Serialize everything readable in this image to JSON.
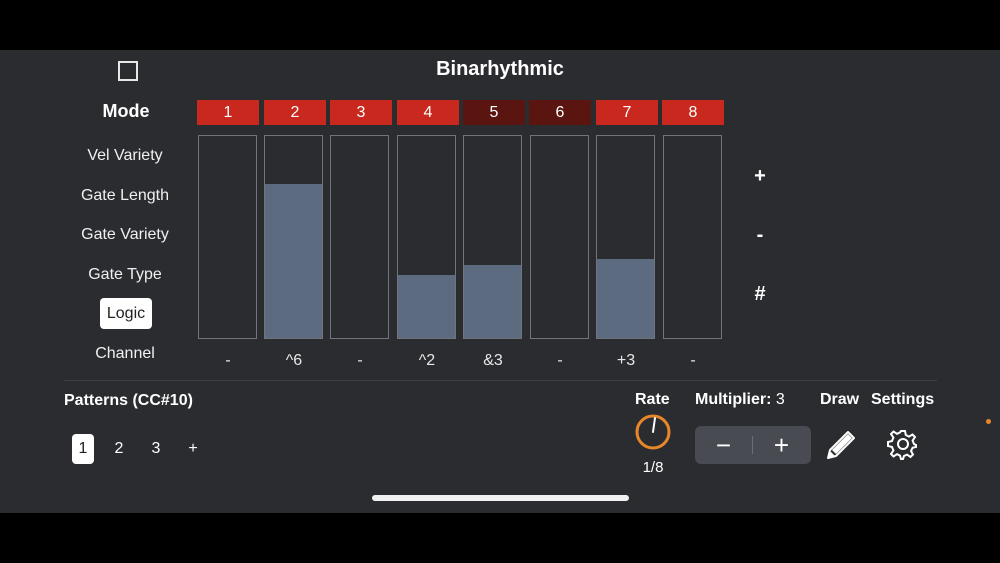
{
  "header": {
    "title": "Binarhythmic"
  },
  "mode": {
    "label": "Mode"
  },
  "steps": [
    {
      "label": "1",
      "active": true,
      "level": 0,
      "value": "-"
    },
    {
      "label": "2",
      "active": true,
      "level": 0.76,
      "value": "^6"
    },
    {
      "label": "3",
      "active": true,
      "level": 0,
      "value": "-"
    },
    {
      "label": "4",
      "active": true,
      "level": 0.31,
      "value": "^2"
    },
    {
      "label": "5",
      "active": false,
      "level": 0.36,
      "value": "&3"
    },
    {
      "label": "6",
      "active": false,
      "level": 0,
      "value": "-"
    },
    {
      "label": "7",
      "active": true,
      "level": 0.39,
      "value": "+3"
    },
    {
      "label": "8",
      "active": true,
      "level": 0,
      "value": "-"
    }
  ],
  "parameters": {
    "vel_variety": "Vel Variety",
    "gate_length": "Gate Length",
    "gate_variety": "Gate Variety",
    "gate_type": "Gate Type",
    "logic": "Logic",
    "channel": "Channel",
    "selected": "Logic"
  },
  "symbols": {
    "plus": "+",
    "minus": "-",
    "hash": "#"
  },
  "patterns": {
    "label": "Patterns (CC#10)",
    "items": [
      "1",
      "2",
      "3"
    ],
    "add": "+",
    "selected": "1"
  },
  "rate": {
    "label": "Rate",
    "value": "1/8"
  },
  "multiplier": {
    "label": "Multiplier:",
    "value": "3",
    "decrease": "−",
    "increase": "+"
  },
  "draw": {
    "label": "Draw",
    "icon": "pencil-icon"
  },
  "settings": {
    "label": "Settings",
    "icon": "gear-icon"
  },
  "colors": {
    "step_active": "#c8281d",
    "step_inactive": "#5a1510",
    "bar_fill": "#5c6b80",
    "knob_accent": "#e8862a",
    "background": "#2b2c30"
  }
}
